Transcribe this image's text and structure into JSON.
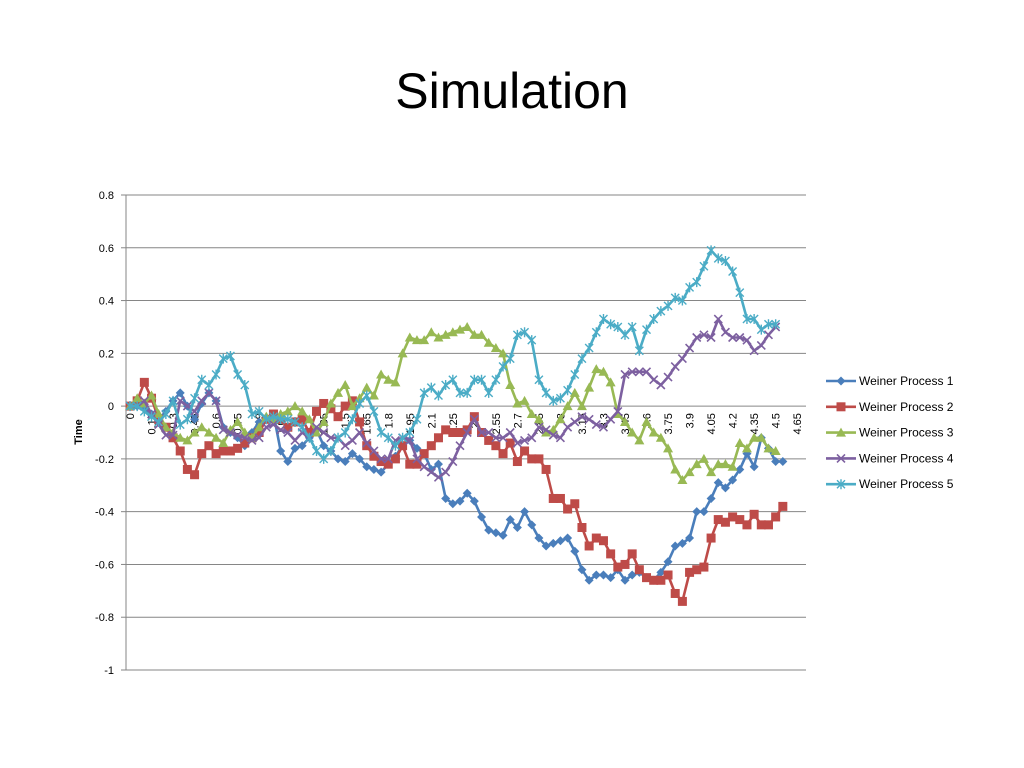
{
  "slide": {
    "title": "Simulation"
  },
  "chart_data": {
    "type": "line",
    "title": "",
    "ylabel": "Time",
    "xlabel": "",
    "ylim": [
      -1,
      0.8
    ],
    "yticks": [
      0.8,
      0.6,
      0.4,
      0.2,
      0,
      -0.2,
      -0.4,
      -0.6,
      -0.8,
      -1
    ],
    "ytick_labels": [
      "0.8",
      "0.6",
      "0.4",
      "0.2",
      "0",
      "-0.2",
      "-0.4",
      "-0.6",
      "-0.8",
      "-1"
    ],
    "x_start": 0,
    "x_step": 0.05,
    "x_label_step": 0.15,
    "x_labels": [
      "0",
      "0.15",
      "0.3",
      "0.45",
      "0.6",
      "0.75",
      "0.9",
      "1.05",
      "1.2",
      "1.35",
      "1.5",
      "1.65",
      "1.8",
      "1.95",
      "2.1",
      "2.25",
      "2.4",
      "2.55",
      "2.7",
      "2.85",
      "3",
      "3.15",
      "3.3",
      "3.45",
      "3.6",
      "3.75",
      "3.9",
      "4.05",
      "4.2",
      "4.35",
      "4.5",
      "4.65"
    ],
    "grid": "horizontal",
    "legend_position": "right",
    "series": [
      {
        "name": "Weiner Process 1",
        "color": "#4a7ebb",
        "marker": "diamond",
        "values": [
          0,
          0,
          -0.01,
          -0.03,
          -0.05,
          -0.02,
          0.02,
          0.05,
          0,
          -0.05,
          0.01,
          0.05,
          0.02,
          -0.08,
          -0.1,
          -0.12,
          -0.15,
          -0.1,
          -0.06,
          -0.05,
          -0.03,
          -0.17,
          -0.21,
          -0.16,
          -0.15,
          -0.12,
          -0.09,
          -0.15,
          -0.17,
          -0.2,
          -0.21,
          -0.18,
          -0.2,
          -0.23,
          -0.24,
          -0.25,
          -0.22,
          -0.19,
          -0.15,
          -0.13,
          -0.16,
          -0.18,
          -0.24,
          -0.22,
          -0.35,
          -0.37,
          -0.36,
          -0.33,
          -0.36,
          -0.42,
          -0.47,
          -0.48,
          -0.49,
          -0.43,
          -0.46,
          -0.4,
          -0.45,
          -0.5,
          -0.53,
          -0.52,
          -0.51,
          -0.5,
          -0.55,
          -0.62,
          -0.66,
          -0.64,
          -0.64,
          -0.65,
          -0.62,
          -0.66,
          -0.64,
          -0.63,
          -0.65,
          -0.66,
          -0.63,
          -0.59,
          -0.53,
          -0.52,
          -0.5,
          -0.4,
          -0.4,
          -0.35,
          -0.29,
          -0.31,
          -0.28,
          -0.24,
          -0.18,
          -0.23,
          -0.12,
          -0.16,
          -0.21,
          -0.21
        ]
      },
      {
        "name": "Weiner Process 2",
        "color": "#be4b48",
        "marker": "square",
        "values": [
          0,
          0.02,
          0.09,
          0.03,
          -0.05,
          -0.08,
          -0.12,
          -0.17,
          -0.24,
          -0.26,
          -0.18,
          -0.15,
          -0.18,
          -0.17,
          -0.17,
          -0.16,
          -0.14,
          -0.12,
          -0.1,
          -0.05,
          -0.03,
          -0.05,
          -0.08,
          -0.06,
          -0.05,
          -0.1,
          -0.02,
          0.01,
          -0.01,
          -0.04,
          0,
          0.02,
          -0.06,
          -0.15,
          -0.19,
          -0.21,
          -0.22,
          -0.2,
          -0.15,
          -0.22,
          -0.22,
          -0.18,
          -0.15,
          -0.12,
          -0.09,
          -0.1,
          -0.1,
          -0.09,
          -0.04,
          -0.1,
          -0.13,
          -0.15,
          -0.18,
          -0.14,
          -0.21,
          -0.17,
          -0.2,
          -0.2,
          -0.24,
          -0.35,
          -0.35,
          -0.39,
          -0.37,
          -0.46,
          -0.53,
          -0.5,
          -0.51,
          -0.56,
          -0.61,
          -0.6,
          -0.56,
          -0.62,
          -0.65,
          -0.66,
          -0.66,
          -0.64,
          -0.71,
          -0.74,
          -0.63,
          -0.62,
          -0.61,
          -0.5,
          -0.43,
          -0.44,
          -0.42,
          -0.43,
          -0.45,
          -0.41,
          -0.45,
          -0.45,
          -0.42,
          -0.38
        ]
      },
      {
        "name": "Weiner Process 3",
        "color": "#98b954",
        "marker": "triangle",
        "values": [
          0,
          0.03,
          0.01,
          0.04,
          -0.03,
          -0.08,
          -0.1,
          -0.12,
          -0.13,
          -0.1,
          -0.08,
          -0.1,
          -0.12,
          -0.14,
          -0.09,
          -0.06,
          -0.1,
          -0.12,
          -0.08,
          -0.04,
          -0.05,
          -0.03,
          -0.02,
          0,
          -0.02,
          -0.05,
          -0.1,
          -0.06,
          0.01,
          0.05,
          0.08,
          0,
          0.03,
          0.07,
          0.04,
          0.12,
          0.1,
          0.09,
          0.2,
          0.26,
          0.25,
          0.25,
          0.28,
          0.26,
          0.27,
          0.28,
          0.29,
          0.3,
          0.27,
          0.27,
          0.24,
          0.22,
          0.2,
          0.08,
          0.01,
          0.02,
          -0.03,
          -0.05,
          -0.1,
          -0.09,
          -0.05,
          0,
          0.05,
          0,
          0.07,
          0.14,
          0.13,
          0.09,
          -0.03,
          -0.06,
          -0.1,
          -0.13,
          -0.06,
          -0.1,
          -0.12,
          -0.16,
          -0.24,
          -0.28,
          -0.25,
          -0.22,
          -0.2,
          -0.25,
          -0.22,
          -0.22,
          -0.23,
          -0.14,
          -0.16,
          -0.12,
          -0.12,
          -0.16,
          -0.17
        ]
      },
      {
        "name": "Weiner Process 4",
        "color": "#7d60a0",
        "marker": "x",
        "values": [
          0,
          0,
          0.02,
          -0.03,
          -0.07,
          -0.11,
          -0.11,
          0.02,
          0,
          -0.02,
          0.02,
          0.05,
          0.02,
          -0.09,
          -0.1,
          -0.11,
          -0.12,
          -0.13,
          -0.12,
          -0.08,
          -0.07,
          -0.09,
          -0.1,
          -0.13,
          -0.1,
          -0.12,
          -0.08,
          -0.1,
          -0.12,
          -0.12,
          -0.15,
          -0.13,
          -0.1,
          -0.14,
          -0.17,
          -0.2,
          -0.2,
          -0.13,
          -0.12,
          -0.13,
          -0.2,
          -0.23,
          -0.25,
          -0.27,
          -0.25,
          -0.21,
          -0.15,
          -0.1,
          -0.05,
          -0.1,
          -0.1,
          -0.12,
          -0.12,
          -0.1,
          -0.14,
          -0.13,
          -0.12,
          -0.08,
          -0.09,
          -0.11,
          -0.12,
          -0.08,
          -0.06,
          -0.04,
          -0.05,
          -0.07,
          -0.08,
          -0.05,
          -0.02,
          0.12,
          0.13,
          0.13,
          0.13,
          0.1,
          0.08,
          0.11,
          0.15,
          0.18,
          0.22,
          0.26,
          0.27,
          0.26,
          0.33,
          0.28,
          0.26,
          0.26,
          0.25,
          0.21,
          0.23,
          0.27,
          0.3
        ]
      },
      {
        "name": "Weiner Process 5",
        "color": "#4bacc6",
        "marker": "star",
        "values": [
          0,
          0,
          -0.02,
          -0.04,
          -0.06,
          -0.03,
          0.02,
          -0.07,
          -0.05,
          0.03,
          0.1,
          0.08,
          0.12,
          0.18,
          0.19,
          0.12,
          0.08,
          -0.03,
          -0.02,
          -0.05,
          -0.04,
          -0.05,
          -0.05,
          -0.06,
          -0.08,
          -0.12,
          -0.17,
          -0.2,
          -0.17,
          -0.12,
          -0.1,
          -0.05,
          0.01,
          0.04,
          -0.02,
          -0.1,
          -0.12,
          -0.15,
          -0.12,
          -0.1,
          -0.05,
          0.05,
          0.07,
          0.04,
          0.08,
          0.1,
          0.05,
          0.05,
          0.1,
          0.1,
          0.05,
          0.1,
          0.15,
          0.18,
          0.27,
          0.28,
          0.25,
          0.1,
          0.05,
          0.02,
          0.03,
          0.06,
          0.12,
          0.18,
          0.22,
          0.28,
          0.33,
          0.31,
          0.3,
          0.27,
          0.3,
          0.21,
          0.29,
          0.33,
          0.36,
          0.38,
          0.41,
          0.4,
          0.45,
          0.47,
          0.53,
          0.59,
          0.56,
          0.55,
          0.51,
          0.43,
          0.33,
          0.33,
          0.29,
          0.31,
          0.31
        ]
      }
    ]
  }
}
